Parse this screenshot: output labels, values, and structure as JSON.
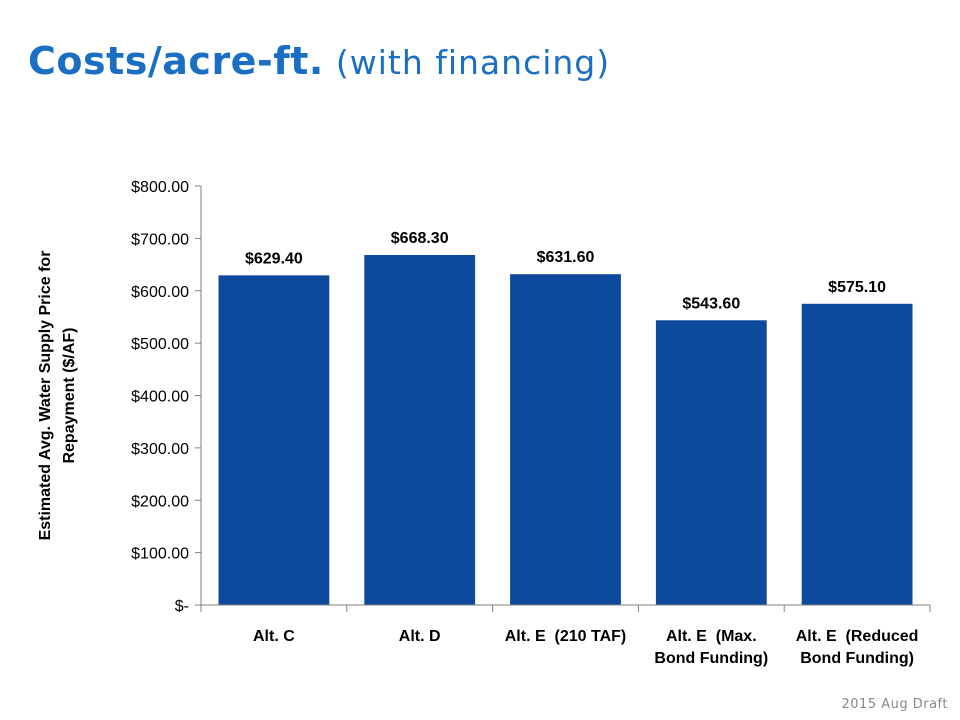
{
  "slide": {
    "title_main": "Costs/acre-ft.",
    "title_sub": "(with financing)",
    "footer": "2015 Aug Draft"
  },
  "chart_data": {
    "type": "bar",
    "categories": [
      [
        "Alt. C"
      ],
      [
        "Alt. D"
      ],
      [
        "Alt. E  (210 TAF)"
      ],
      [
        "Alt. E  (Max.",
        "Bond Funding)"
      ],
      [
        "Alt. E  (Reduced",
        "Bond Funding)"
      ]
    ],
    "values": [
      629.4,
      668.3,
      631.6,
      543.6,
      575.1
    ],
    "data_labels": [
      "$629.40",
      "$668.30",
      "$631.60",
      "$543.60",
      "$575.10"
    ],
    "ylabel": [
      "Estimated Avg. Water Supply Price for",
      "Repayment ($/AF)"
    ],
    "ylim": [
      0,
      800
    ],
    "yticks": [
      0,
      100,
      200,
      300,
      400,
      500,
      600,
      700,
      800
    ],
    "ytick_labels": [
      "$-",
      "$100.00",
      "$200.00",
      "$300.00",
      "$400.00",
      "$500.00",
      "$600.00",
      "$700.00",
      "$800.00"
    ],
    "bar_color": "#0d4a9e",
    "axis_color": "#7f7f7f",
    "grid": false,
    "legend": "none"
  }
}
